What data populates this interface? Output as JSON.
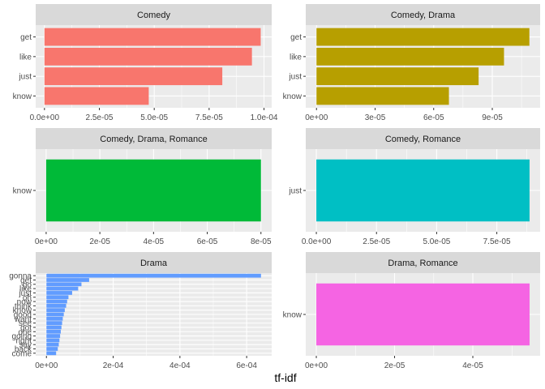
{
  "chart_data": {
    "type": "bar",
    "orientation": "horizontal",
    "facet_grid": "3 rows x 2 columns",
    "xlabel": "tf-idf",
    "ylabel": "",
    "grid": true,
    "panel_background": "#ebebeb",
    "strip_background": "#d9d9d9",
    "panels": [
      {
        "title": "Comedy",
        "color": "#F8766D",
        "categories": [
          "get",
          "like",
          "just",
          "know"
        ],
        "values": [
          9.85e-05,
          9.45e-05,
          8.1e-05,
          4.75e-05
        ],
        "xlim": [
          -4e-06,
          0.0001035
        ],
        "xticks": [
          0,
          2.5e-05,
          5e-05,
          7.5e-05,
          0.0001
        ],
        "xtick_labels": [
          "0.0e+00",
          "2.5e-05",
          "5.0e-05",
          "7.5e-05",
          "1.0e-04"
        ]
      },
      {
        "title": "Comedy, Drama",
        "color": "#B79F00",
        "categories": [
          "get",
          "like",
          "just",
          "know"
        ],
        "values": [
          0.000109,
          9.6e-05,
          8.3e-05,
          6.78e-05
        ],
        "xlim": [
          -5.5e-06,
          0.0001145
        ],
        "xticks": [
          0,
          3e-05,
          6e-05,
          9e-05
        ],
        "xtick_labels": [
          "0e+00",
          "3e-05",
          "6e-05",
          "9e-05"
        ]
      },
      {
        "title": "Comedy, Drama, Romance",
        "color": "#00BA38",
        "categories": [
          "know"
        ],
        "values": [
          8e-05
        ],
        "xlim": [
          -3.9e-06,
          8.4e-05
        ],
        "xticks": [
          0,
          2e-05,
          4e-05,
          6e-05,
          8e-05
        ],
        "xtick_labels": [
          "0e+00",
          "2e-05",
          "4e-05",
          "6e-05",
          "8e-05"
        ]
      },
      {
        "title": "Comedy, Romance",
        "color": "#00BFC4",
        "categories": [
          "just"
        ],
        "values": [
          8.86e-05
        ],
        "xlim": [
          -4.4e-06,
          9.3e-05
        ],
        "xticks": [
          0,
          2.5e-05,
          5e-05,
          7.5e-05
        ],
        "xtick_labels": [
          "0.0e+00",
          "2.5e-05",
          "5.0e-05",
          "7.5e-05"
        ]
      },
      {
        "title": "Drama",
        "color": "#619CFF",
        "categories": [
          "gonna",
          "get",
          "go",
          "like",
          "just",
          "oh",
          "now",
          "think",
          "know",
          "good",
          "want",
          "see",
          "got",
          "one",
          "going",
          "right",
          "say",
          "back",
          "come"
        ],
        "values": [
          0.000643,
          0.000128,
          0.000105,
          9.5e-05,
          7.7e-05,
          6.6e-05,
          6.2e-05,
          5.9e-05,
          5.5e-05,
          5.2e-05,
          4.9e-05,
          4.7e-05,
          4.5e-05,
          4.3e-05,
          4.1e-05,
          3.9e-05,
          3.7e-05,
          3.4e-05,
          2.9e-05
        ],
        "xlim": [
          -3.22e-05,
          0.000675
        ],
        "xticks": [
          0,
          0.0002,
          0.0004,
          0.0006
        ],
        "xtick_labels": [
          "0e+00",
          "2e-04",
          "4e-04",
          "6e-04"
        ]
      },
      {
        "title": "Drama, Romance",
        "color": "#F564E3",
        "categories": [
          "know"
        ],
        "values": [
          5.45e-05
        ],
        "xlim": [
          -2.7e-06,
          5.72e-05
        ],
        "xticks": [
          0,
          2e-05,
          4e-05
        ],
        "xtick_labels": [
          "0e+00",
          "2e-05",
          "4e-05"
        ]
      }
    ]
  }
}
